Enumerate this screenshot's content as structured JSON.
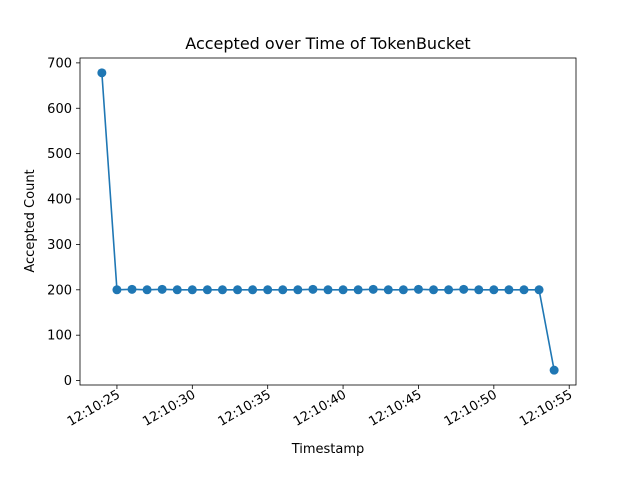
{
  "chart_data": {
    "type": "line",
    "title": "Accepted over Time of TokenBucket",
    "xlabel": "Timestamp",
    "ylabel": "Accepted Count",
    "x": [
      "12:10:24",
      "12:10:25",
      "12:10:26",
      "12:10:27",
      "12:10:28",
      "12:10:29",
      "12:10:30",
      "12:10:31",
      "12:10:32",
      "12:10:33",
      "12:10:34",
      "12:10:35",
      "12:10:36",
      "12:10:37",
      "12:10:38",
      "12:10:39",
      "12:10:40",
      "12:10:41",
      "12:10:42",
      "12:10:43",
      "12:10:44",
      "12:10:45",
      "12:10:46",
      "12:10:47",
      "12:10:48",
      "12:10:49",
      "12:10:50",
      "12:10:51",
      "12:10:52",
      "12:10:53",
      "12:10:54"
    ],
    "series": [
      {
        "values": [
          678,
          200,
          201,
          200,
          201,
          200,
          200,
          200,
          200,
          200,
          200,
          200,
          200,
          200,
          201,
          200,
          200,
          200,
          201,
          200,
          200,
          201,
          200,
          200,
          201,
          200,
          200,
          200,
          200,
          200,
          23
        ],
        "color": "#1f77b4",
        "marker": "circle"
      }
    ],
    "xticks": [
      "12:10:25",
      "12:10:30",
      "12:10:35",
      "12:10:40",
      "12:10:45",
      "12:10:50",
      "12:10:55"
    ],
    "yticks": [
      0,
      100,
      200,
      300,
      400,
      500,
      600,
      700
    ],
    "xlim": [
      "12:10:22.55",
      "12:10:55.45"
    ],
    "ylim": [
      -9.75,
      710.75
    ],
    "grid": false,
    "legend": "none"
  }
}
